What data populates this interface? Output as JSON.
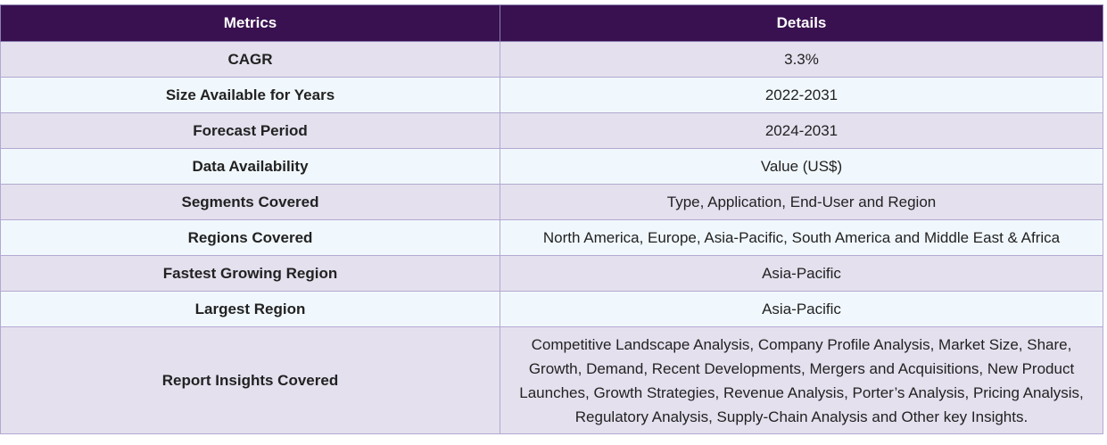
{
  "table": {
    "headers": [
      "Metrics",
      "Details"
    ],
    "rows": [
      {
        "metric": "CAGR",
        "detail": "3.3%"
      },
      {
        "metric": "Size Available for Years",
        "detail": "2022-2031"
      },
      {
        "metric": "Forecast Period",
        "detail": "2024-2031"
      },
      {
        "metric": "Data Availability",
        "detail": "Value (US$)"
      },
      {
        "metric": "Segments Covered",
        "detail": "Type, Application, End-User and Region"
      },
      {
        "metric": "Regions Covered",
        "detail": "North America, Europe, Asia-Pacific, South America and Middle East & Africa"
      },
      {
        "metric": "Fastest Growing Region",
        "detail": "Asia-Pacific"
      },
      {
        "metric": "Largest Region",
        "detail": "Asia-Pacific"
      },
      {
        "metric": "Report Insights Covered",
        "detail": "Competitive Landscape Analysis, Company Profile Analysis, Market Size, Share, Growth, Demand, Recent Developments, Mergers and Acquisitions, New Product Launches, Growth Strategies, Revenue Analysis, Porter’s Analysis, Pricing Analysis, Regulatory Analysis, Supply-Chain Analysis and Other key Insights."
      }
    ]
  },
  "colors": {
    "header_bg": "#3a1150",
    "odd_row_bg": "#e4e0ee",
    "even_row_bg": "#f1f8fd",
    "border": "#b3a9d1"
  }
}
